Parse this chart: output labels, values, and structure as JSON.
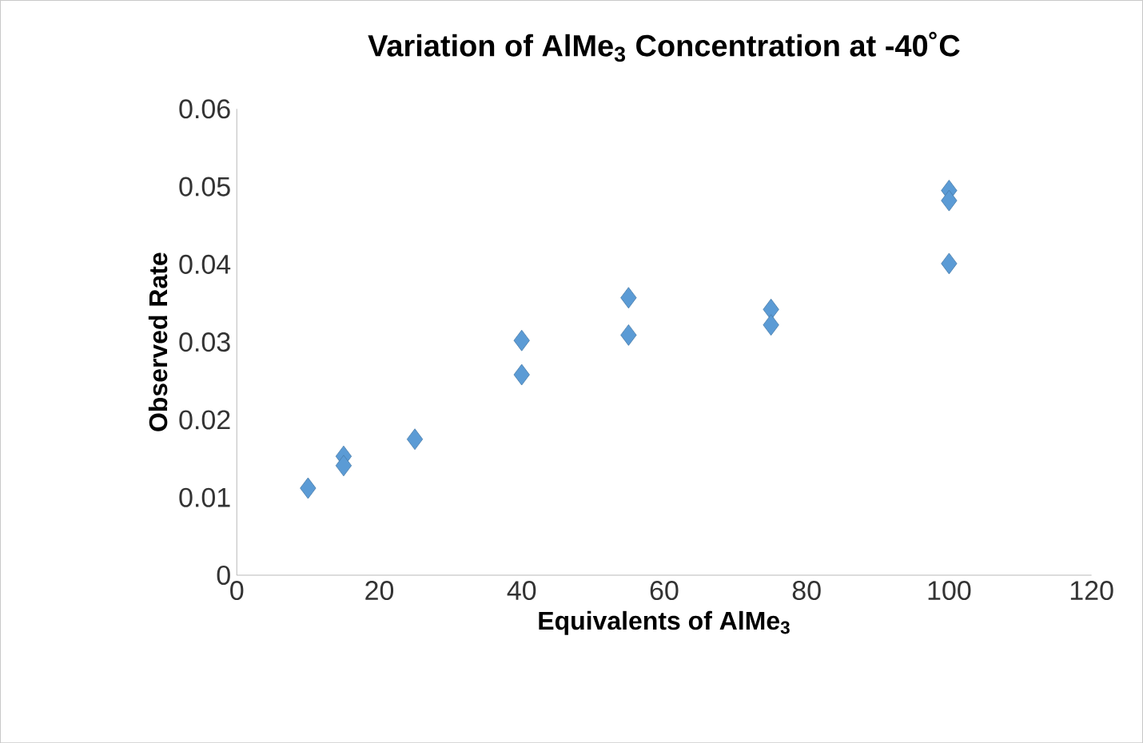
{
  "chart_data": {
    "type": "scatter",
    "title": "Variation of AlMe$_{3}$ Concentration at -40˚C",
    "xlabel": "Equivalents of AlMe$_{3}$",
    "ylabel": "Observed Rate",
    "x": [
      10,
      15,
      15,
      25,
      40,
      40,
      55,
      55,
      75,
      75,
      100,
      100,
      100
    ],
    "values": [
      0.0112,
      0.0153,
      0.0141,
      0.0175,
      0.0302,
      0.0258,
      0.0357,
      0.0309,
      0.0342,
      0.0322,
      0.0495,
      0.0482,
      0.0401
    ],
    "color": "#5b9bd5",
    "marker": "diamond",
    "xlim": [
      0,
      120
    ],
    "ylim": [
      0,
      0.06
    ],
    "xticks": [
      0,
      20,
      40,
      60,
      80,
      100,
      120
    ],
    "yticks": [
      0,
      0.01,
      0.02,
      0.03,
      0.04,
      0.05,
      0.06
    ],
    "grid": false
  }
}
